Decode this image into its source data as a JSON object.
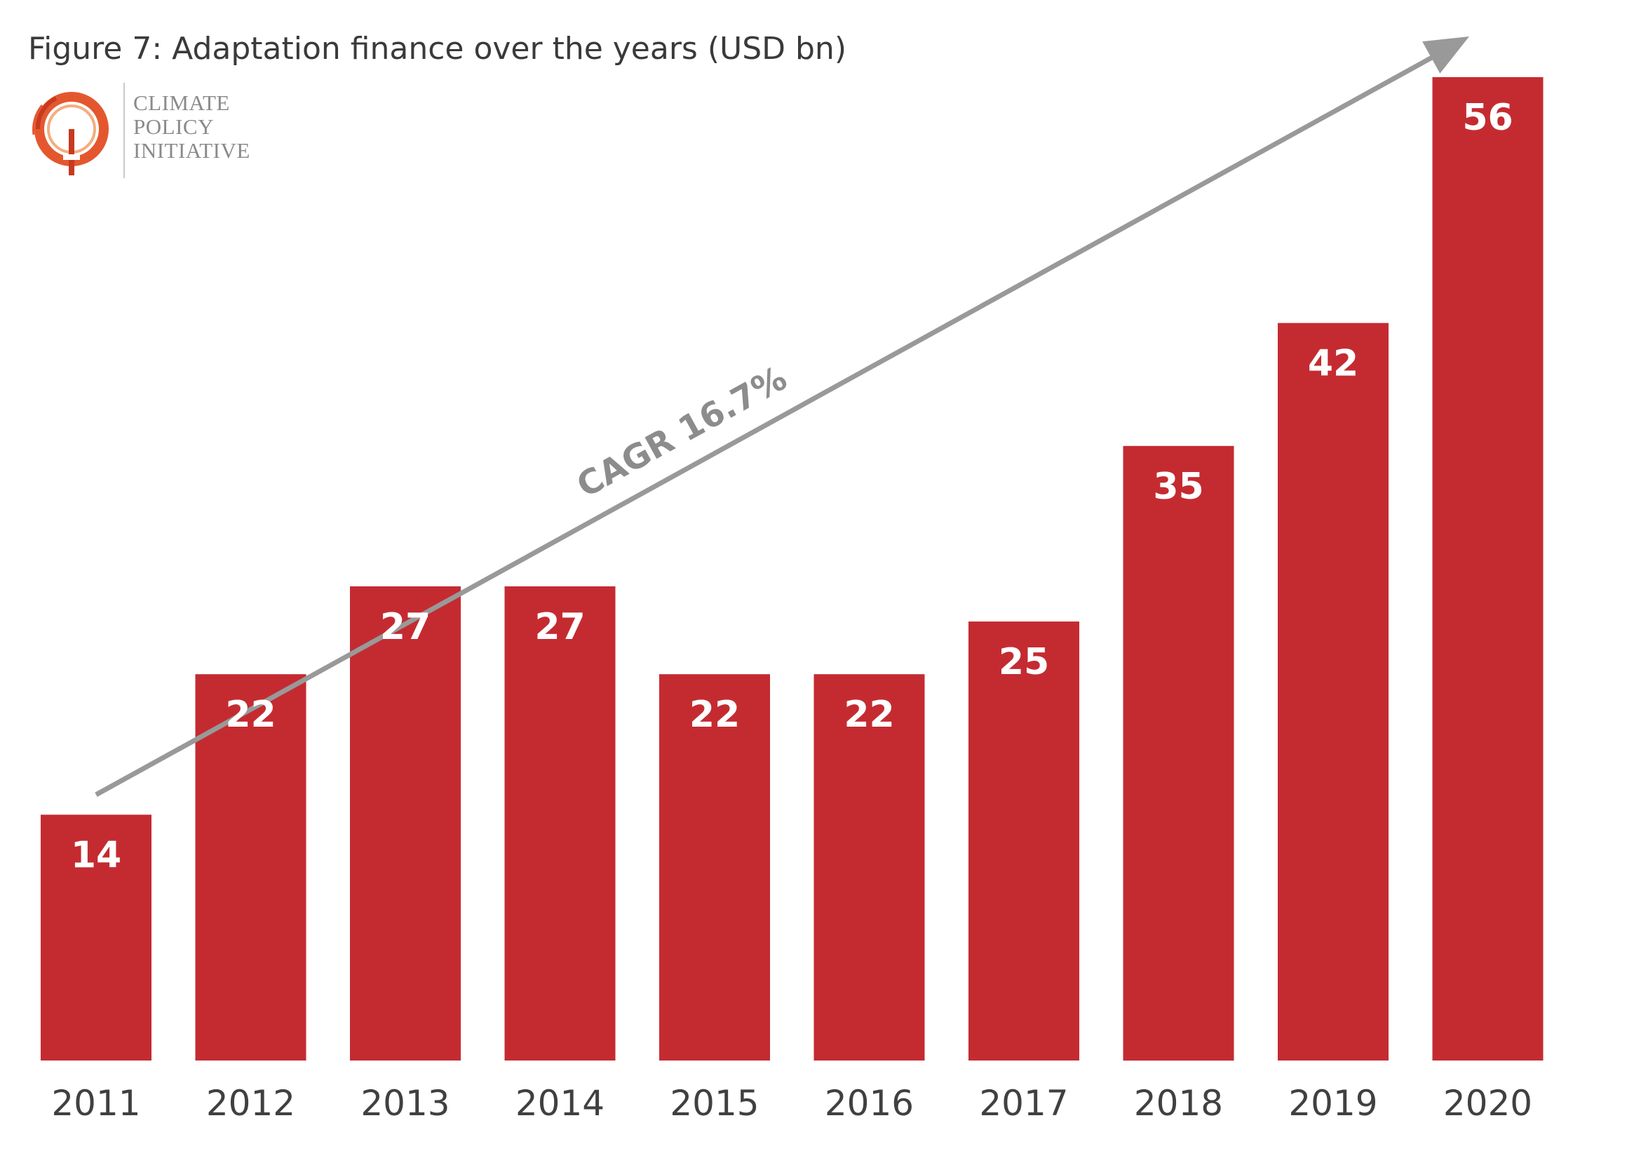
{
  "title": "Figure 7: Adaptation finance over the years (USD bn)",
  "logo": {
    "lines": [
      "CLIMATE",
      "POLICY",
      "INITIATIVE"
    ]
  },
  "colors": {
    "bar": "#c42b31",
    "arrow": "#999999",
    "axis_text": "#404040",
    "value_text": "#ffffff",
    "logo_orange": "#e4572e"
  },
  "chart_data": {
    "type": "bar",
    "title": "Figure 7: Adaptation finance over the years (USD bn)",
    "xlabel": "",
    "ylabel": "",
    "categories": [
      "2011",
      "2012",
      "2013",
      "2014",
      "2015",
      "2016",
      "2017",
      "2018",
      "2019",
      "2020"
    ],
    "values": [
      14,
      22,
      27,
      27,
      22,
      22,
      25,
      35,
      42,
      56
    ],
    "data_labels": [
      "14",
      "22",
      "27",
      "27",
      "22",
      "22",
      "25",
      "35",
      "42",
      "56"
    ],
    "ylim": [
      0,
      56
    ],
    "grid": false,
    "legend": "none",
    "annotation": {
      "text": "CAGR 16.7%",
      "kind": "trend-arrow"
    }
  }
}
